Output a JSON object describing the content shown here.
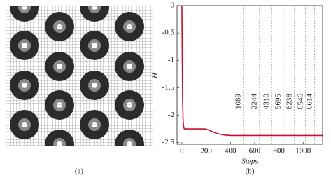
{
  "panel_a": {
    "caption": "(a)"
  },
  "chart_data": {
    "type": "line",
    "caption": "(b)",
    "x_label": "Steps",
    "y_label": "H",
    "x": [
      0,
      3,
      6,
      10,
      15,
      20,
      30,
      60,
      100,
      150,
      190,
      220,
      260,
      300,
      350,
      400,
      500,
      700,
      900,
      1100,
      1160
    ],
    "series": [
      {
        "color": "#c8102e",
        "values": [
          0,
          -0.9,
          -1.7,
          -2.1,
          -2.22,
          -2.25,
          -2.25,
          -2.25,
          -2.25,
          -2.25,
          -2.25,
          -2.27,
          -2.31,
          -2.34,
          -2.36,
          -2.37,
          -2.37,
          -2.37,
          -2.37,
          -2.37,
          -2.37
        ]
      }
    ],
    "xlim": [
      -40,
      1160
    ],
    "ylim": [
      -2.53,
      0
    ],
    "xticks": [
      0,
      200,
      400,
      600,
      800,
      1000
    ],
    "yticks": [
      0,
      -0.5,
      -1,
      -1.5,
      -2,
      -2.5
    ],
    "annotations": [
      {
        "x": 507,
        "label": "1089"
      },
      {
        "x": 640,
        "label": "2244"
      },
      {
        "x": 738,
        "label": "4310"
      },
      {
        "x": 836,
        "label": "5695"
      },
      {
        "x": 928,
        "label": "6238"
      },
      {
        "x": 1020,
        "label": "6546"
      },
      {
        "x": 1095,
        "label": "6614"
      }
    ]
  }
}
